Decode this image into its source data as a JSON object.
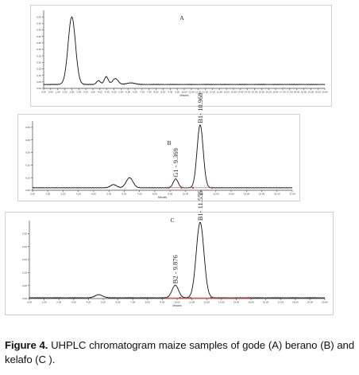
{
  "caption": {
    "lead": "Figure 4.",
    "text": " UHPLC chromatogram maize samples of gode (A) berano (B) and kelafo (C )."
  },
  "chart_data": [
    {
      "type": "line",
      "panel_label": "A",
      "x_unit": "Minutes",
      "xlim": [
        0,
        20
      ],
      "ylim": [
        0,
        0.6
      ],
      "y_ticks": [
        "0.00",
        "0.05",
        "0.10",
        "0.15",
        "0.20",
        "0.25",
        "0.30",
        "0.35",
        "0.40",
        "0.45",
        "0.50",
        "0.55"
      ],
      "x_ticks": [
        "0.00",
        "0.50",
        "1.00",
        "1.50",
        "2.00",
        "2.50",
        "3.00",
        "3.50",
        "4.00",
        "4.50",
        "5.00",
        "5.50",
        "6.00",
        "6.50",
        "7.00",
        "7.50",
        "8.00",
        "8.50",
        "9.00",
        "9.50",
        "10.00",
        "10.50",
        "11.00",
        "11.50",
        "12.00",
        "12.50",
        "13.00",
        "13.50",
        "14.00",
        "14.50",
        "15.00",
        "15.50",
        "16.00",
        "16.50",
        "17.00",
        "17.50",
        "18.00",
        "18.50",
        "19.00",
        "19.50",
        "20.00"
      ],
      "baseline": 0.03,
      "peaks": [
        {
          "rt": 2.0,
          "height": 0.52,
          "width": 0.26
        },
        {
          "rt": 3.9,
          "height": 0.03,
          "width": 0.14
        },
        {
          "rt": 4.45,
          "height": 0.06,
          "width": 0.14
        },
        {
          "rt": 5.1,
          "height": 0.045,
          "width": 0.2
        },
        {
          "rt": 6.2,
          "height": 0.012,
          "width": 0.3
        }
      ],
      "peak_labels": [],
      "grid": false
    },
    {
      "type": "line",
      "panel_label": "B",
      "x_unit": "Minutes",
      "xlim": [
        0,
        17
      ],
      "ylim": [
        0,
        0.55
      ],
      "y_ticks": [
        "0.00",
        "0.10",
        "0.20",
        "0.30",
        "0.40",
        "0.50"
      ],
      "x_ticks": [
        "0.00",
        "1.00",
        "2.00",
        "3.00",
        "4.00",
        "5.00",
        "6.00",
        "7.00",
        "8.00",
        "9.00",
        "10.00",
        "11.00",
        "12.00",
        "13.00",
        "14.00",
        "15.00",
        "16.00",
        "17.00"
      ],
      "baseline": 0.02,
      "peaks": [
        {
          "rt": 5.3,
          "height": 0.025,
          "width": 0.2
        },
        {
          "rt": 6.35,
          "height": 0.08,
          "width": 0.22
        },
        {
          "rt": 9.369,
          "height": 0.07,
          "width": 0.16
        },
        {
          "rt": 10.968,
          "height": 0.5,
          "width": 0.2
        }
      ],
      "peak_labels": [
        {
          "rt": 9.369,
          "text": "G1 - 9.369"
        },
        {
          "rt": 10.968,
          "text": "B1- 10.968"
        }
      ],
      "integration_marks": [
        8.9,
        9.75,
        10.5,
        11.75
      ],
      "grid": false
    },
    {
      "type": "line",
      "panel_label": "C",
      "x_unit": "Minutes",
      "xlim": [
        0,
        20
      ],
      "ylim": [
        0,
        0.3
      ],
      "y_ticks": [
        "0.00",
        "0.05",
        "0.10",
        "0.15",
        "0.20",
        "0.25"
      ],
      "x_ticks": [
        "0.00",
        "1.00",
        "2.00",
        "3.00",
        "4.00",
        "5.00",
        "6.00",
        "7.00",
        "8.00",
        "9.00",
        "10.00",
        "11.00",
        "12.00",
        "13.00",
        "14.00",
        "15.00",
        "16.00",
        "17.00",
        "18.00",
        "19.00",
        "20.00"
      ],
      "baseline": 0.003,
      "peaks": [
        {
          "rt": 4.7,
          "height": 0.012,
          "width": 0.25
        },
        {
          "rt": 9.876,
          "height": 0.048,
          "width": 0.22
        },
        {
          "rt": 11.556,
          "height": 0.29,
          "width": 0.26
        }
      ],
      "peak_labels": [
        {
          "rt": 9.876,
          "text": "B2 - 9.876"
        },
        {
          "rt": 11.556,
          "text": "B1- 11.556"
        }
      ],
      "integration_marks": [
        9.3,
        10.2,
        10.9,
        12.3,
        14.8
      ],
      "grid": false
    }
  ]
}
